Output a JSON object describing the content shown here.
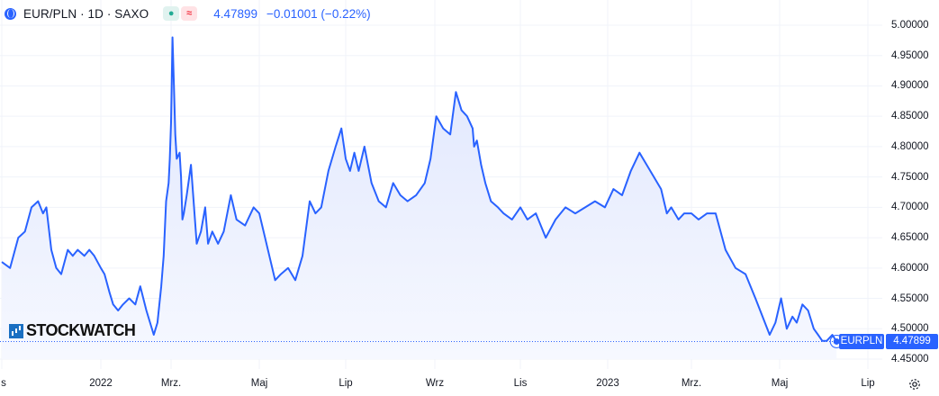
{
  "header": {
    "symbol": "EUR/PLN · 1D · SAXO",
    "status_dot": "●",
    "wave": "≈",
    "price": "4.47899",
    "change": "−0.01001 (−0.22%)"
  },
  "logo": {
    "text": "STOCKWATCH"
  },
  "badges": {
    "ticker": "EURPLN",
    "last": "4.47899"
  },
  "colors": {
    "line": "#2962ff",
    "fill_top": "#dfe6fd",
    "fill_bottom": "#f6f8ff",
    "grid": "#f0f3fa",
    "last_price_line": "#2962ff",
    "text": "#131722"
  },
  "chart_data": {
    "type": "area",
    "title": "EUR/PLN · 1D · SAXO",
    "xlabel": "",
    "ylabel": "",
    "ylim": [
      4.43,
      5.02
    ],
    "grid": true,
    "y_ticks": [
      "5.00000",
      "4.95000",
      "4.90000",
      "4.85000",
      "4.80000",
      "4.75000",
      "4.70000",
      "4.65000",
      "4.60000",
      "4.55000",
      "4.50000",
      "4.45000"
    ],
    "x_ticks": [
      "s",
      "2022",
      "Mrz.",
      "Maj",
      "Lip",
      "Wrz",
      "Lis",
      "2023",
      "Mrz.",
      "Maj",
      "Lip"
    ],
    "x_tick_dates": [
      "2021-11-04",
      "2022-01-03",
      "2022-03-01",
      "2022-05-02",
      "2022-07-01",
      "2022-09-01",
      "2022-11-01",
      "2023-01-02",
      "2023-03-01",
      "2023-05-02",
      "2023-07-03"
    ],
    "last_price": 4.47899,
    "series": [
      {
        "x": [
          "2021-11-04",
          "2021-11-09",
          "2021-11-14",
          "2021-11-18",
          "2021-11-22",
          "2021-11-26",
          "2021-11-29",
          "2021-12-01",
          "2021-12-04",
          "2021-12-07",
          "2021-12-10",
          "2021-12-14",
          "2021-12-17",
          "2021-12-20",
          "2021-12-24",
          "2021-12-27",
          "2021-12-30",
          "2022-01-03",
          "2022-01-06",
          "2022-01-10",
          "2022-01-13",
          "2022-01-17",
          "2022-01-21",
          "2022-01-26",
          "2022-01-31",
          "2022-02-04",
          "2022-02-09",
          "2022-02-12",
          "2022-02-15",
          "2022-02-18",
          "2022-02-21",
          "2022-02-23",
          "2022-02-25",
          "2022-02-27",
          "2022-02-28",
          "2022-03-01",
          "2022-03-02",
          "2022-03-03",
          "2022-03-04",
          "2022-03-05",
          "2022-03-07",
          "2022-03-08",
          "2022-03-09",
          "2022-03-10",
          "2022-03-12",
          "2022-03-15",
          "2022-03-19",
          "2022-03-22",
          "2022-03-25",
          "2022-03-27",
          "2022-03-30",
          "2022-04-03",
          "2022-04-07",
          "2022-04-12",
          "2022-04-16",
          "2022-04-22",
          "2022-04-28",
          "2022-05-02",
          "2022-05-05",
          "2022-05-09",
          "2022-05-13",
          "2022-05-17",
          "2022-05-22",
          "2022-05-27",
          "2022-06-01",
          "2022-06-06",
          "2022-06-10",
          "2022-06-14",
          "2022-06-19",
          "2022-06-24",
          "2022-06-28",
          "2022-07-01",
          "2022-07-04",
          "2022-07-07",
          "2022-07-10",
          "2022-07-14",
          "2022-07-19",
          "2022-07-24",
          "2022-07-29",
          "2022-08-03",
          "2022-08-08",
          "2022-08-13",
          "2022-08-19",
          "2022-08-25",
          "2022-08-29",
          "2022-09-02",
          "2022-09-07",
          "2022-09-12",
          "2022-09-16",
          "2022-09-20",
          "2022-09-24",
          "2022-09-28",
          "2022-09-29",
          "2022-10-01",
          "2022-10-04",
          "2022-10-07",
          "2022-10-11",
          "2022-10-16",
          "2022-10-20",
          "2022-10-26",
          "2022-11-01",
          "2022-11-06",
          "2022-11-12",
          "2022-11-19",
          "2022-11-26",
          "2022-12-03",
          "2022-12-10",
          "2022-12-17",
          "2022-12-24",
          "2022-12-31",
          "2023-01-06",
          "2023-01-12",
          "2023-01-18",
          "2023-01-24",
          "2023-01-29",
          "2023-02-03",
          "2023-02-08",
          "2023-02-12",
          "2023-02-15",
          "2023-02-20",
          "2023-02-24",
          "2023-03-01",
          "2023-03-06",
          "2023-03-12",
          "2023-03-18",
          "2023-03-25",
          "2023-04-01",
          "2023-04-08",
          "2023-04-15",
          "2023-04-20",
          "2023-04-25",
          "2023-04-29",
          "2023-05-03",
          "2023-05-07",
          "2023-05-11",
          "2023-05-14",
          "2023-05-18",
          "2023-05-22",
          "2023-05-26",
          "2023-05-29",
          "2023-06-01",
          "2023-06-04",
          "2023-06-08",
          "2023-06-11"
        ],
        "values": [
          4.61,
          4.6,
          4.65,
          4.66,
          4.7,
          4.71,
          4.69,
          4.7,
          4.63,
          4.6,
          4.59,
          4.63,
          4.62,
          4.63,
          4.62,
          4.63,
          4.62,
          4.6,
          4.59,
          4.56,
          4.54,
          4.53,
          4.54,
          4.55,
          4.54,
          4.57,
          4.53,
          4.51,
          4.49,
          4.51,
          4.57,
          4.62,
          4.71,
          4.74,
          4.78,
          4.84,
          4.98,
          4.9,
          4.82,
          4.78,
          4.79,
          4.75,
          4.68,
          4.69,
          4.72,
          4.77,
          4.64,
          4.66,
          4.7,
          4.64,
          4.66,
          4.64,
          4.66,
          4.72,
          4.68,
          4.67,
          4.7,
          4.69,
          4.66,
          4.62,
          4.58,
          4.59,
          4.6,
          4.58,
          4.62,
          4.71,
          4.69,
          4.7,
          4.76,
          4.8,
          4.83,
          4.78,
          4.76,
          4.79,
          4.76,
          4.8,
          4.74,
          4.71,
          4.7,
          4.74,
          4.72,
          4.71,
          4.72,
          4.74,
          4.78,
          4.85,
          4.83,
          4.82,
          4.89,
          4.86,
          4.85,
          4.83,
          4.8,
          4.81,
          4.77,
          4.74,
          4.71,
          4.7,
          4.69,
          4.68,
          4.7,
          4.68,
          4.69,
          4.65,
          4.68,
          4.7,
          4.69,
          4.7,
          4.71,
          4.7,
          4.73,
          4.72,
          4.76,
          4.79,
          4.77,
          4.75,
          4.73,
          4.69,
          4.7,
          4.68,
          4.69,
          4.69,
          4.68,
          4.69,
          4.69,
          4.63,
          4.6,
          4.59,
          4.55,
          4.52,
          4.49,
          4.51,
          4.55,
          4.5,
          4.52,
          4.51,
          4.54,
          4.53,
          4.5,
          4.49,
          4.48,
          4.48,
          4.49,
          4.47899
        ]
      }
    ]
  }
}
